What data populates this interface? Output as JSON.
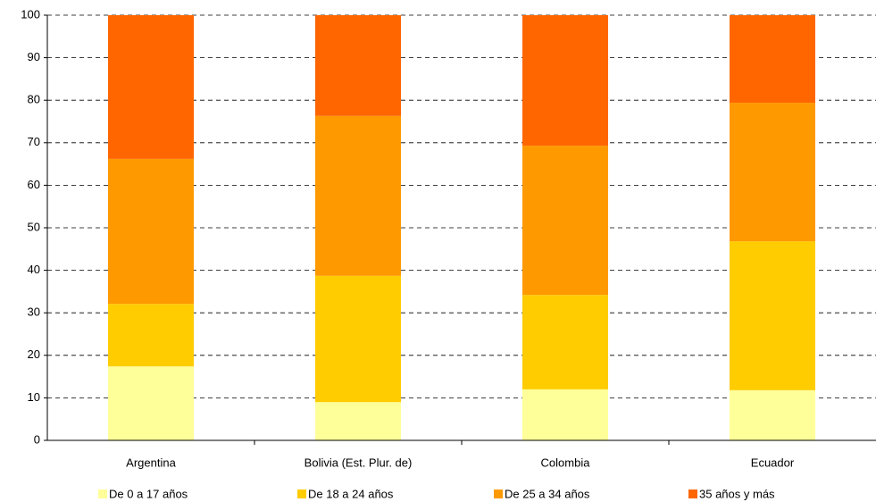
{
  "chart_data": {
    "type": "stacked-bar",
    "categories": [
      "Argentina",
      "Bolivia (Est. Plur. de)",
      "Colombia",
      "Ecuador"
    ],
    "series": [
      {
        "name": "De 0 a 17 años",
        "color": "#ffff99",
        "values": [
          17.4,
          9.0,
          12.0,
          11.8
        ]
      },
      {
        "name": "De 18 a 24 años",
        "color": "#ffcc00",
        "values": [
          14.7,
          29.7,
          22.2,
          35.0
        ]
      },
      {
        "name": "De 25 a 34 años",
        "color": "#ff9900",
        "values": [
          34.1,
          37.6,
          35.1,
          32.6
        ]
      },
      {
        "name": "35 años y más",
        "color": "#ff6600",
        "values": [
          33.8,
          23.7,
          30.7,
          20.6
        ]
      }
    ],
    "ylim": [
      0,
      100
    ],
    "yticks": [
      0,
      10,
      20,
      30,
      40,
      50,
      60,
      70,
      80,
      90,
      100
    ],
    "grid": true
  }
}
